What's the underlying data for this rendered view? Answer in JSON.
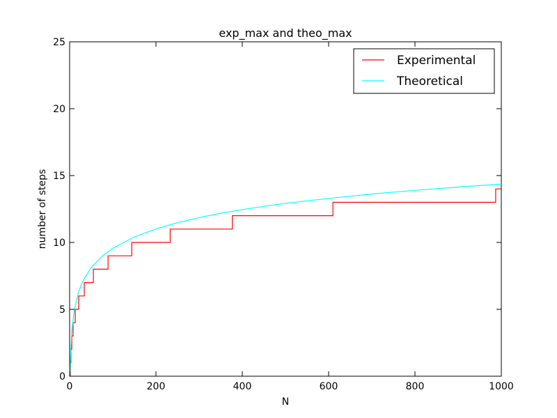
{
  "chart_data": {
    "type": "line",
    "title": "exp_max and theo_max",
    "xlabel": "N",
    "ylabel": "number of steps",
    "xlim": [
      0,
      1000
    ],
    "ylim": [
      0,
      25
    ],
    "xticks": [
      "0",
      "200",
      "400",
      "600",
      "800",
      "1000"
    ],
    "yticks": [
      "0",
      "5",
      "10",
      "15",
      "20",
      "25"
    ],
    "grid": false,
    "legend_position": "top-right",
    "series": [
      {
        "name": "Experimental",
        "color": "#ff0000",
        "style": "step",
        "points": [
          [
            1,
            0
          ],
          [
            2,
            1
          ],
          [
            3,
            2
          ],
          [
            5,
            3
          ],
          [
            8,
            4
          ],
          [
            13,
            5
          ],
          [
            21,
            6
          ],
          [
            34,
            7
          ],
          [
            55,
            8
          ],
          [
            89,
            9
          ],
          [
            144,
            10
          ],
          [
            233,
            11
          ],
          [
            377,
            12
          ],
          [
            610,
            13
          ],
          [
            987,
            14
          ],
          [
            1000,
            14
          ]
        ]
      },
      {
        "name": "Theoretical",
        "color": "#00ffff",
        "style": "smooth",
        "points": [
          [
            1,
            0
          ],
          [
            2,
            1.44
          ],
          [
            5,
            3.34
          ],
          [
            10,
            4.78
          ],
          [
            20,
            6.22
          ],
          [
            30,
            7.07
          ],
          [
            50,
            8.13
          ],
          [
            75,
            8.97
          ],
          [
            100,
            9.57
          ],
          [
            150,
            10.41
          ],
          [
            200,
            11.01
          ],
          [
            250,
            11.48
          ],
          [
            300,
            11.86
          ],
          [
            350,
            12.18
          ],
          [
            400,
            12.45
          ],
          [
            450,
            12.7
          ],
          [
            500,
            12.92
          ],
          [
            550,
            13.11
          ],
          [
            600,
            13.29
          ],
          [
            650,
            13.46
          ],
          [
            700,
            13.62
          ],
          [
            750,
            13.76
          ],
          [
            800,
            13.89
          ],
          [
            850,
            14.02
          ],
          [
            900,
            14.14
          ],
          [
            950,
            14.25
          ],
          [
            1000,
            14.35
          ]
        ]
      }
    ]
  }
}
